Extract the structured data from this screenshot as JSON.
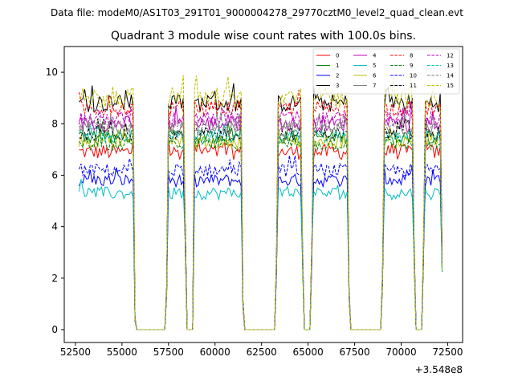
{
  "suptitle": "Data file: modeM0/AS1T03_291T01_9000004278_29770cztM0_level2_quad_clean.evt",
  "chart_data": {
    "type": "line",
    "title": "Quadrant 3 module wise count rates with 100.0s bins.",
    "xlabel": "",
    "ylabel": "",
    "x_offset_label": "+3.548e8",
    "xlim": [
      51900,
      73300
    ],
    "ylim": [
      -0.5,
      11.0
    ],
    "xticks": [
      52500,
      55000,
      57500,
      60000,
      62500,
      65000,
      67500,
      70000,
      72500
    ],
    "xtick_labels": [
      "52500",
      "55000",
      "57500",
      "60000",
      "62500",
      "65000",
      "67500",
      "70000",
      "72500"
    ],
    "yticks": [
      0,
      2,
      4,
      6,
      8,
      10
    ],
    "ytick_labels": [
      "0",
      "2",
      "4",
      "6",
      "8",
      "10"
    ],
    "bin_s": 100,
    "x_start": 52700,
    "x_end": 72200,
    "gaps": [
      [
        55800,
        57300
      ],
      [
        58500,
        58700
      ],
      [
        58800,
        58800
      ],
      [
        61600,
        63200
      ],
      [
        64800,
        65100
      ],
      [
        67300,
        68900
      ],
      [
        70800,
        71100
      ]
    ],
    "dips": [
      [
        55700,
        0.4
      ],
      [
        57400,
        1.5
      ],
      [
        58400,
        3.5
      ],
      [
        58800,
        3.5
      ],
      [
        61500,
        1.0
      ],
      [
        63300,
        2.5
      ],
      [
        64700,
        3.0
      ],
      [
        65200,
        3.0
      ],
      [
        67200,
        1.5
      ],
      [
        69000,
        2.0
      ],
      [
        70700,
        3.0
      ],
      [
        71200,
        3.0
      ],
      [
        72200,
        2.5
      ]
    ],
    "legend_position": "top-right",
    "series": [
      {
        "name": "0",
        "level": 6.9,
        "noise": 0.3,
        "color": "#ff0000",
        "dash": "solid"
      },
      {
        "name": "1",
        "level": 7.5,
        "noise": 0.25,
        "color": "#008000",
        "dash": "solid"
      },
      {
        "name": "2",
        "level": 5.8,
        "noise": 0.25,
        "color": "#0000ff",
        "dash": "solid"
      },
      {
        "name": "3",
        "level": 8.8,
        "noise": 0.35,
        "color": "#000000",
        "dash": "solid"
      },
      {
        "name": "4",
        "level": 8.0,
        "noise": 0.3,
        "color": "#bf00bf",
        "dash": "solid"
      },
      {
        "name": "5",
        "level": 5.3,
        "noise": 0.25,
        "color": "#00bfbf",
        "dash": "solid"
      },
      {
        "name": "6",
        "level": 7.3,
        "noise": 0.25,
        "color": "#bfbf00",
        "dash": "solid"
      },
      {
        "name": "7",
        "level": 7.8,
        "noise": 0.25,
        "color": "#808080",
        "dash": "solid"
      },
      {
        "name": "8",
        "level": 8.6,
        "noise": 0.3,
        "color": "#ff0000",
        "dash": "dashed"
      },
      {
        "name": "9",
        "level": 7.2,
        "noise": 0.25,
        "color": "#008000",
        "dash": "dashed"
      },
      {
        "name": "10",
        "level": 6.2,
        "noise": 0.25,
        "color": "#0000ff",
        "dash": "dashed"
      },
      {
        "name": "11",
        "level": 7.6,
        "noise": 0.25,
        "color": "#000000",
        "dash": "dashed"
      },
      {
        "name": "12",
        "level": 8.2,
        "noise": 0.3,
        "color": "#bf00bf",
        "dash": "dashed"
      },
      {
        "name": "13",
        "level": 7.5,
        "noise": 0.25,
        "color": "#00bfbf",
        "dash": "dashed"
      },
      {
        "name": "14",
        "level": 7.9,
        "noise": 0.25,
        "color": "#808080",
        "dash": "dashed"
      },
      {
        "name": "15",
        "level": 9.0,
        "noise": 0.4,
        "color": "#bfbf00",
        "dash": "dashed"
      }
    ],
    "legend_order": [
      "0",
      "1",
      "2",
      "3",
      "4",
      "5",
      "6",
      "7",
      "8",
      "9",
      "10",
      "11",
      "12",
      "13",
      "14",
      "15"
    ]
  }
}
